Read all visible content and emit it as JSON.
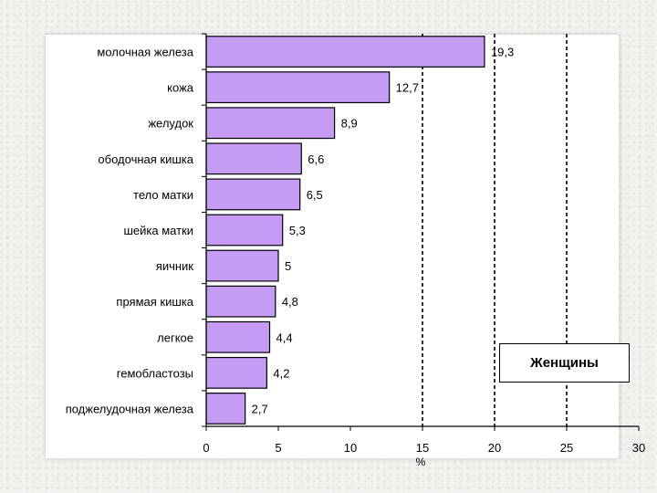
{
  "chart_data": {
    "type": "bar",
    "orientation": "horizontal",
    "categories": [
      "молочная железа",
      "кожа",
      "желудок",
      "ободочная кишка",
      "тело матки",
      "шейка матки",
      "яичник",
      "прямая кишка",
      "легкое",
      "гемобластозы",
      "поджелудочная железа"
    ],
    "values": [
      19.3,
      12.7,
      8.9,
      6.6,
      6.5,
      5.3,
      5,
      4.8,
      4.4,
      4.2,
      2.7
    ],
    "value_labels": [
      "19,3",
      "12,7",
      "8,9",
      "6,6",
      "6,5",
      "5,3",
      "5",
      "4,8",
      "4,4",
      "4,2",
      "2,7"
    ],
    "xlim": [
      0,
      30
    ],
    "xticks": [
      0,
      5,
      10,
      15,
      20,
      25,
      30
    ],
    "xlabel": "%",
    "gridlines_x": [
      15,
      20,
      25
    ],
    "grid": "dashed vertical",
    "legend": "Женщины",
    "legend_position": "bottom-right",
    "colors": {
      "bar_fill": "#c59bf3",
      "bar_stroke": "#000000",
      "axis": "#000000"
    }
  }
}
